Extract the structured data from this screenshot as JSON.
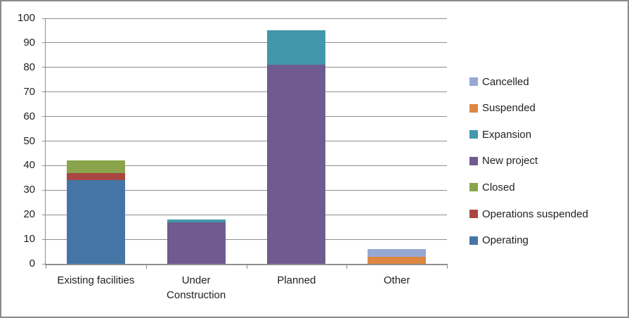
{
  "chart_data": {
    "type": "bar",
    "stacked": true,
    "title": "",
    "xlabel": "",
    "ylabel": "",
    "categories": [
      "Existing facilities",
      "Under Construction",
      "Planned",
      "Other"
    ],
    "series": [
      {
        "name": "Operating",
        "color": "#4575A7",
        "values": [
          34,
          0,
          0,
          0
        ]
      },
      {
        "name": "Operations suspended",
        "color": "#A94642",
        "values": [
          3,
          0,
          0,
          0
        ]
      },
      {
        "name": "Closed",
        "color": "#8AA44B",
        "values": [
          5,
          0,
          0,
          0
        ]
      },
      {
        "name": "New project",
        "color": "#6F5B8F",
        "values": [
          0,
          17,
          81,
          0
        ]
      },
      {
        "name": "Expansion",
        "color": "#4297AB",
        "values": [
          0,
          1,
          14,
          0
        ]
      },
      {
        "name": "Suspended",
        "color": "#DD8742",
        "values": [
          0,
          0,
          0,
          3
        ]
      },
      {
        "name": "Cancelled",
        "color": "#97A8D3",
        "values": [
          0,
          0,
          0,
          3
        ]
      }
    ],
    "stack_order": "first series at bottom of stack",
    "ylim": [
      0,
      100
    ],
    "yticks": [
      0,
      10,
      20,
      30,
      40,
      50,
      60,
      70,
      80,
      90,
      100
    ],
    "grid": true,
    "legend": {
      "position": "right",
      "labels_top_to_bottom": [
        "Cancelled",
        "Suspended",
        "Expansion",
        "New project",
        "Closed",
        "Operations suspended",
        "Operating"
      ]
    }
  },
  "colors": {
    "grid": "#8e8e8e",
    "axis": "#8e8e8e",
    "tick": "#8e8e8e",
    "text": "#1f1f1f",
    "frame_border": "#8a8a8a",
    "background": "#ffffff"
  }
}
